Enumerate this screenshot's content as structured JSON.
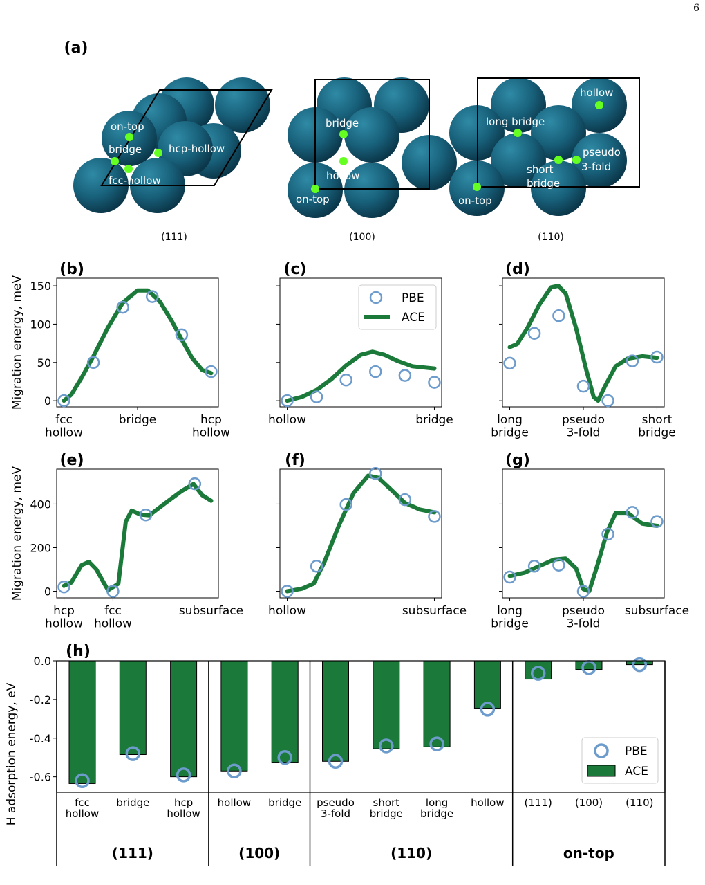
{
  "page_number": "6",
  "colors": {
    "atom": "#1a5f75",
    "site": "#66ff22",
    "pbe": "#6c9bcc",
    "ace": "#1b7a3a"
  },
  "panel_a": {
    "label": "(a)",
    "surfaces": [
      {
        "name": "(111)",
        "sites": [
          "on-top",
          "bridge",
          "fcc-hollow",
          "hcp-hollow"
        ]
      },
      {
        "name": "(100)",
        "sites": [
          "bridge",
          "hollow",
          "on-top"
        ]
      },
      {
        "name": "(110)",
        "sites": [
          "hollow",
          "long bridge",
          "pseudo",
          "3-fold",
          "short",
          "bridge",
          "on-top"
        ]
      }
    ]
  },
  "legend": {
    "pbe": "PBE",
    "ace": "ACE"
  },
  "chart_data": [
    {
      "panel": "(b)",
      "type": "line",
      "ylabel": "Migration energy, meV",
      "ylim": [
        -8,
        160
      ],
      "yticks": [
        0,
        50,
        100,
        150
      ],
      "xticks": [
        {
          "x": 0,
          "label": "fcc\nhollow"
        },
        {
          "x": 0.5,
          "label": "bridge"
        },
        {
          "x": 1,
          "label": "hcp\nhollow"
        }
      ],
      "pbe": [
        [
          0,
          0
        ],
        [
          0.2,
          50
        ],
        [
          0.4,
          122
        ],
        [
          0.6,
          136
        ],
        [
          0.8,
          86
        ],
        [
          1.0,
          38
        ]
      ],
      "ace": [
        [
          0,
          0
        ],
        [
          0.05,
          8
        ],
        [
          0.12,
          30
        ],
        [
          0.2,
          58
        ],
        [
          0.3,
          96
        ],
        [
          0.4,
          128
        ],
        [
          0.5,
          144
        ],
        [
          0.57,
          144
        ],
        [
          0.65,
          130
        ],
        [
          0.73,
          105
        ],
        [
          0.8,
          80
        ],
        [
          0.87,
          56
        ],
        [
          0.94,
          40
        ],
        [
          1.0,
          36
        ]
      ]
    },
    {
      "panel": "(c)",
      "type": "line",
      "ylim": [
        -8,
        160
      ],
      "yticks": [
        0,
        50,
        100,
        150
      ],
      "xticks": [
        {
          "x": 0,
          "label": "hollow"
        },
        {
          "x": 1,
          "label": "bridge"
        }
      ],
      "legend_position": "top-right",
      "pbe": [
        [
          0,
          0
        ],
        [
          0.2,
          5
        ],
        [
          0.4,
          27
        ],
        [
          0.6,
          38
        ],
        [
          0.8,
          33
        ],
        [
          1.0,
          24
        ]
      ],
      "ace": [
        [
          0,
          0
        ],
        [
          0.1,
          5
        ],
        [
          0.2,
          14
        ],
        [
          0.3,
          28
        ],
        [
          0.4,
          46
        ],
        [
          0.5,
          60
        ],
        [
          0.58,
          64
        ],
        [
          0.66,
          60
        ],
        [
          0.75,
          52
        ],
        [
          0.85,
          45
        ],
        [
          1.0,
          42
        ]
      ]
    },
    {
      "panel": "(d)",
      "type": "line",
      "ylim": [
        -8,
        160
      ],
      "yticks": [
        0,
        50,
        100,
        150
      ],
      "xticks": [
        {
          "x": 0,
          "label": "long\nbridge"
        },
        {
          "x": 0.5,
          "label": "pseudo\n3-fold"
        },
        {
          "x": 1,
          "label": "short\nbridge"
        }
      ],
      "pbe": [
        [
          0,
          49
        ],
        [
          0.167,
          88
        ],
        [
          0.333,
          111
        ],
        [
          0.5,
          19
        ],
        [
          0.667,
          0
        ],
        [
          0.833,
          52
        ],
        [
          1.0,
          57
        ]
      ],
      "ace": [
        [
          0,
          70
        ],
        [
          0.05,
          74
        ],
        [
          0.12,
          95
        ],
        [
          0.2,
          125
        ],
        [
          0.28,
          148
        ],
        [
          0.33,
          150
        ],
        [
          0.38,
          140
        ],
        [
          0.45,
          95
        ],
        [
          0.52,
          40
        ],
        [
          0.57,
          5
        ],
        [
          0.6,
          0
        ],
        [
          0.65,
          20
        ],
        [
          0.72,
          45
        ],
        [
          0.8,
          55
        ],
        [
          0.9,
          58
        ],
        [
          1.0,
          56
        ]
      ]
    },
    {
      "panel": "(e)",
      "type": "line",
      "ylabel": "Migration energy, meV",
      "ylim": [
        -30,
        560
      ],
      "yticks": [
        0,
        200,
        400
      ],
      "xticks": [
        {
          "x": 0,
          "label": "hcp\nhollow"
        },
        {
          "x": 0.333,
          "label": "fcc\nhollow"
        },
        {
          "x": 1,
          "label": "subsurface"
        }
      ],
      "pbe": [
        [
          0,
          20
        ],
        [
          0.333,
          0
        ],
        [
          0.556,
          350
        ],
        [
          0.889,
          493
        ]
      ],
      "ace": [
        [
          0,
          25
        ],
        [
          0.05,
          40
        ],
        [
          0.12,
          120
        ],
        [
          0.17,
          135
        ],
        [
          0.22,
          100
        ],
        [
          0.27,
          40
        ],
        [
          0.3,
          5
        ],
        [
          0.37,
          35
        ],
        [
          0.42,
          320
        ],
        [
          0.46,
          370
        ],
        [
          0.52,
          352
        ],
        [
          0.58,
          348
        ],
        [
          0.7,
          410
        ],
        [
          0.8,
          460
        ],
        [
          0.88,
          492
        ],
        [
          0.94,
          440
        ],
        [
          1.0,
          415
        ]
      ]
    },
    {
      "panel": "(f)",
      "type": "line",
      "ylim": [
        -30,
        560
      ],
      "yticks": [
        0,
        200,
        400
      ],
      "xticks": [
        {
          "x": 0,
          "label": "hollow"
        },
        {
          "x": 1,
          "label": "subsurface"
        }
      ],
      "pbe": [
        [
          0,
          0
        ],
        [
          0.2,
          115
        ],
        [
          0.4,
          398
        ],
        [
          0.6,
          540
        ],
        [
          0.8,
          420
        ],
        [
          1.0,
          343
        ]
      ],
      "ace": [
        [
          0,
          0
        ],
        [
          0.1,
          12
        ],
        [
          0.18,
          35
        ],
        [
          0.25,
          130
        ],
        [
          0.35,
          300
        ],
        [
          0.45,
          450
        ],
        [
          0.55,
          530
        ],
        [
          0.62,
          520
        ],
        [
          0.7,
          470
        ],
        [
          0.8,
          405
        ],
        [
          0.9,
          375
        ],
        [
          1.0,
          362
        ]
      ]
    },
    {
      "panel": "(g)",
      "type": "line",
      "ylim": [
        -30,
        560
      ],
      "yticks": [
        0,
        200,
        400
      ],
      "xticks": [
        {
          "x": 0,
          "label": "long\nbridge"
        },
        {
          "x": 0.5,
          "label": "pseudo\n3-fold"
        },
        {
          "x": 1,
          "label": "subsurface"
        }
      ],
      "pbe": [
        [
          0,
          65
        ],
        [
          0.167,
          115
        ],
        [
          0.333,
          120
        ],
        [
          0.5,
          0
        ],
        [
          0.667,
          262
        ],
        [
          0.833,
          362
        ],
        [
          1.0,
          320
        ]
      ],
      "ace": [
        [
          0,
          70
        ],
        [
          0.1,
          85
        ],
        [
          0.2,
          115
        ],
        [
          0.3,
          145
        ],
        [
          0.38,
          150
        ],
        [
          0.45,
          105
        ],
        [
          0.5,
          10
        ],
        [
          0.54,
          0
        ],
        [
          0.6,
          130
        ],
        [
          0.66,
          270
        ],
        [
          0.72,
          360
        ],
        [
          0.8,
          360
        ],
        [
          0.9,
          310
        ],
        [
          1.0,
          300
        ]
      ]
    },
    {
      "panel": "(h)",
      "type": "bar",
      "ylabel": "H adsorption energy, eV",
      "ylim": [
        -0.68,
        0
      ],
      "yticks": [
        0.0,
        -0.2,
        -0.4,
        -0.6
      ],
      "ytick_labels": [
        "0.0",
        "-0.2",
        "-0.4",
        "-0.6"
      ],
      "categories": [
        "fcc\nhollow",
        "bridge",
        "hcp\nhollow",
        "hollow",
        "bridge",
        "pseudo\n3-fold",
        "short\nbridge",
        "long\nbridge",
        "hollow",
        "(111)",
        "(100)",
        "(110)"
      ],
      "groups": [
        {
          "label": "(111)",
          "count": 3
        },
        {
          "label": "(100)",
          "count": 2
        },
        {
          "label": "(110)",
          "count": 4
        },
        {
          "label": "on-top",
          "count": 3
        }
      ],
      "series": [
        {
          "name": "ACE",
          "values": [
            -0.635,
            -0.485,
            -0.6,
            -0.57,
            -0.525,
            -0.52,
            -0.455,
            -0.445,
            -0.245,
            -0.095,
            -0.045,
            -0.02
          ]
        },
        {
          "name": "PBE",
          "values": [
            -0.62,
            -0.48,
            -0.59,
            -0.57,
            -0.5,
            -0.52,
            -0.44,
            -0.43,
            -0.25,
            -0.065,
            -0.035,
            -0.02
          ]
        }
      ],
      "legend_position": "lower-right"
    }
  ]
}
